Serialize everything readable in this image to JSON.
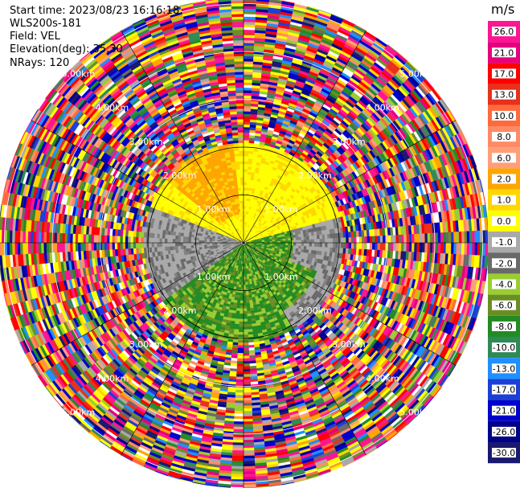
{
  "header": {
    "start_time": "Start time: 2023/08/23 16:16:18",
    "instrument": "WLS200s-181",
    "field": "Field: VEL",
    "elevation": "Elevation(deg): 35.30",
    "nrays": "NRays: 120"
  },
  "chart_data": {
    "type": "heatmap",
    "projection": "polar (PPI)",
    "range_rings_km": [
      1.0,
      2.0,
      3.0,
      4.0,
      5.0
    ],
    "ring_label_text": [
      "1.00km",
      "2.00km",
      "3.00km",
      "4.00km",
      "5.00km"
    ],
    "spoke_angles_deg": [
      0,
      30,
      60,
      90,
      120,
      150,
      180,
      210,
      240,
      270,
      300,
      330
    ],
    "colorbar": {
      "unit": "m/s",
      "tick_labels": [
        "26.0",
        "21.0",
        "17.0",
        "13.0",
        "10.0",
        "8.0",
        "6.0",
        "2.0",
        "1.0",
        "0.0",
        "-1.0",
        "-2.0",
        "-4.0",
        "-6.0",
        "-8.0",
        "-10.0",
        "-13.0",
        "-17.0",
        "-21.0",
        "-26.0",
        "-30.0"
      ],
      "colors": [
        "#ff1493",
        "#e6007e",
        "#ff0000",
        "#e8301a",
        "#ff6a3d",
        "#ff8a66",
        "#ff9f7a",
        "#ffa500",
        "#ffd700",
        "#ffff00",
        "#a9a9a9",
        "#696969",
        "#9acd32",
        "#6b8e23",
        "#228b22",
        "#2e8b57",
        "#1e90ff",
        "#1c3fd6",
        "#0000cd",
        "#00008b",
        "#191970"
      ]
    },
    "field_regions": {
      "north": "positive velocities 1–6 m/s (yellow/orange)",
      "south": "negative velocities -2 to -8 m/s (green)",
      "west_east": "near-zero velocities (gray)",
      "outer": "noisy mixed velocities beyond ~2 km"
    }
  }
}
